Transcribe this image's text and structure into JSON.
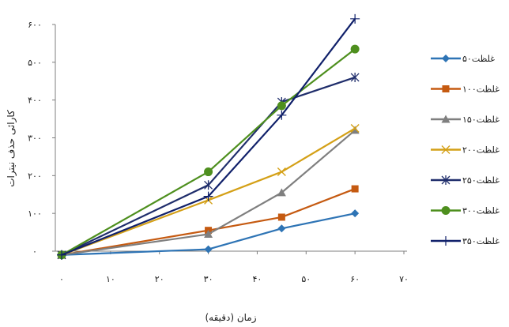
{
  "chart_data": {
    "type": "line",
    "xlabel": "زمان (دقیقه)",
    "ylabel": "کارائی حذف نیترات",
    "xlim": [
      0,
      70
    ],
    "ylim": [
      0,
      600
    ],
    "x_ticks": [
      0,
      10,
      20,
      30,
      40,
      50,
      60,
      70
    ],
    "y_ticks": [
      0,
      100,
      200,
      300,
      400,
      500,
      600
    ],
    "x_tick_labels": [
      "۰",
      "۱۰",
      "۲۰",
      "۳۰",
      "۴۰",
      "۵۰",
      "۶۰",
      "۷۰"
    ],
    "y_tick_labels": [
      "۰",
      "۱۰۰",
      "۲۰۰",
      "۳۰۰",
      "۴۰۰",
      "۵۰۰",
      "۶۰۰"
    ],
    "grid": false,
    "legend_position": "right",
    "x": [
      0,
      30,
      45,
      60
    ],
    "series": [
      {
        "name": "غلظت۵۰",
        "values": [
          -10,
          5,
          60,
          100
        ],
        "color": "#2e74b5",
        "marker": "diamond"
      },
      {
        "name": "غلظت۱۰۰",
        "values": [
          -10,
          55,
          90,
          165
        ],
        "color": "#c55a11",
        "marker": "square"
      },
      {
        "name": "غلظت۱۵۰",
        "values": [
          -10,
          45,
          155,
          320
        ],
        "color": "#7f7f7f",
        "marker": "triangle"
      },
      {
        "name": "غلظت۲۰۰",
        "values": [
          -10,
          135,
          210,
          325
        ],
        "color": "#d4a017",
        "marker": "x"
      },
      {
        "name": "غلظت۲۵۰",
        "values": [
          -10,
          175,
          395,
          460
        ],
        "color": "#1f2d6b",
        "marker": "asterisk"
      },
      {
        "name": "غلظت۳۰۰",
        "values": [
          -10,
          210,
          385,
          535
        ],
        "color": "#4e8f1e",
        "marker": "circle"
      },
      {
        "name": "غلظت۳۵۰",
        "values": [
          -10,
          145,
          360,
          615
        ],
        "color": "#10206a",
        "marker": "plus"
      }
    ]
  }
}
